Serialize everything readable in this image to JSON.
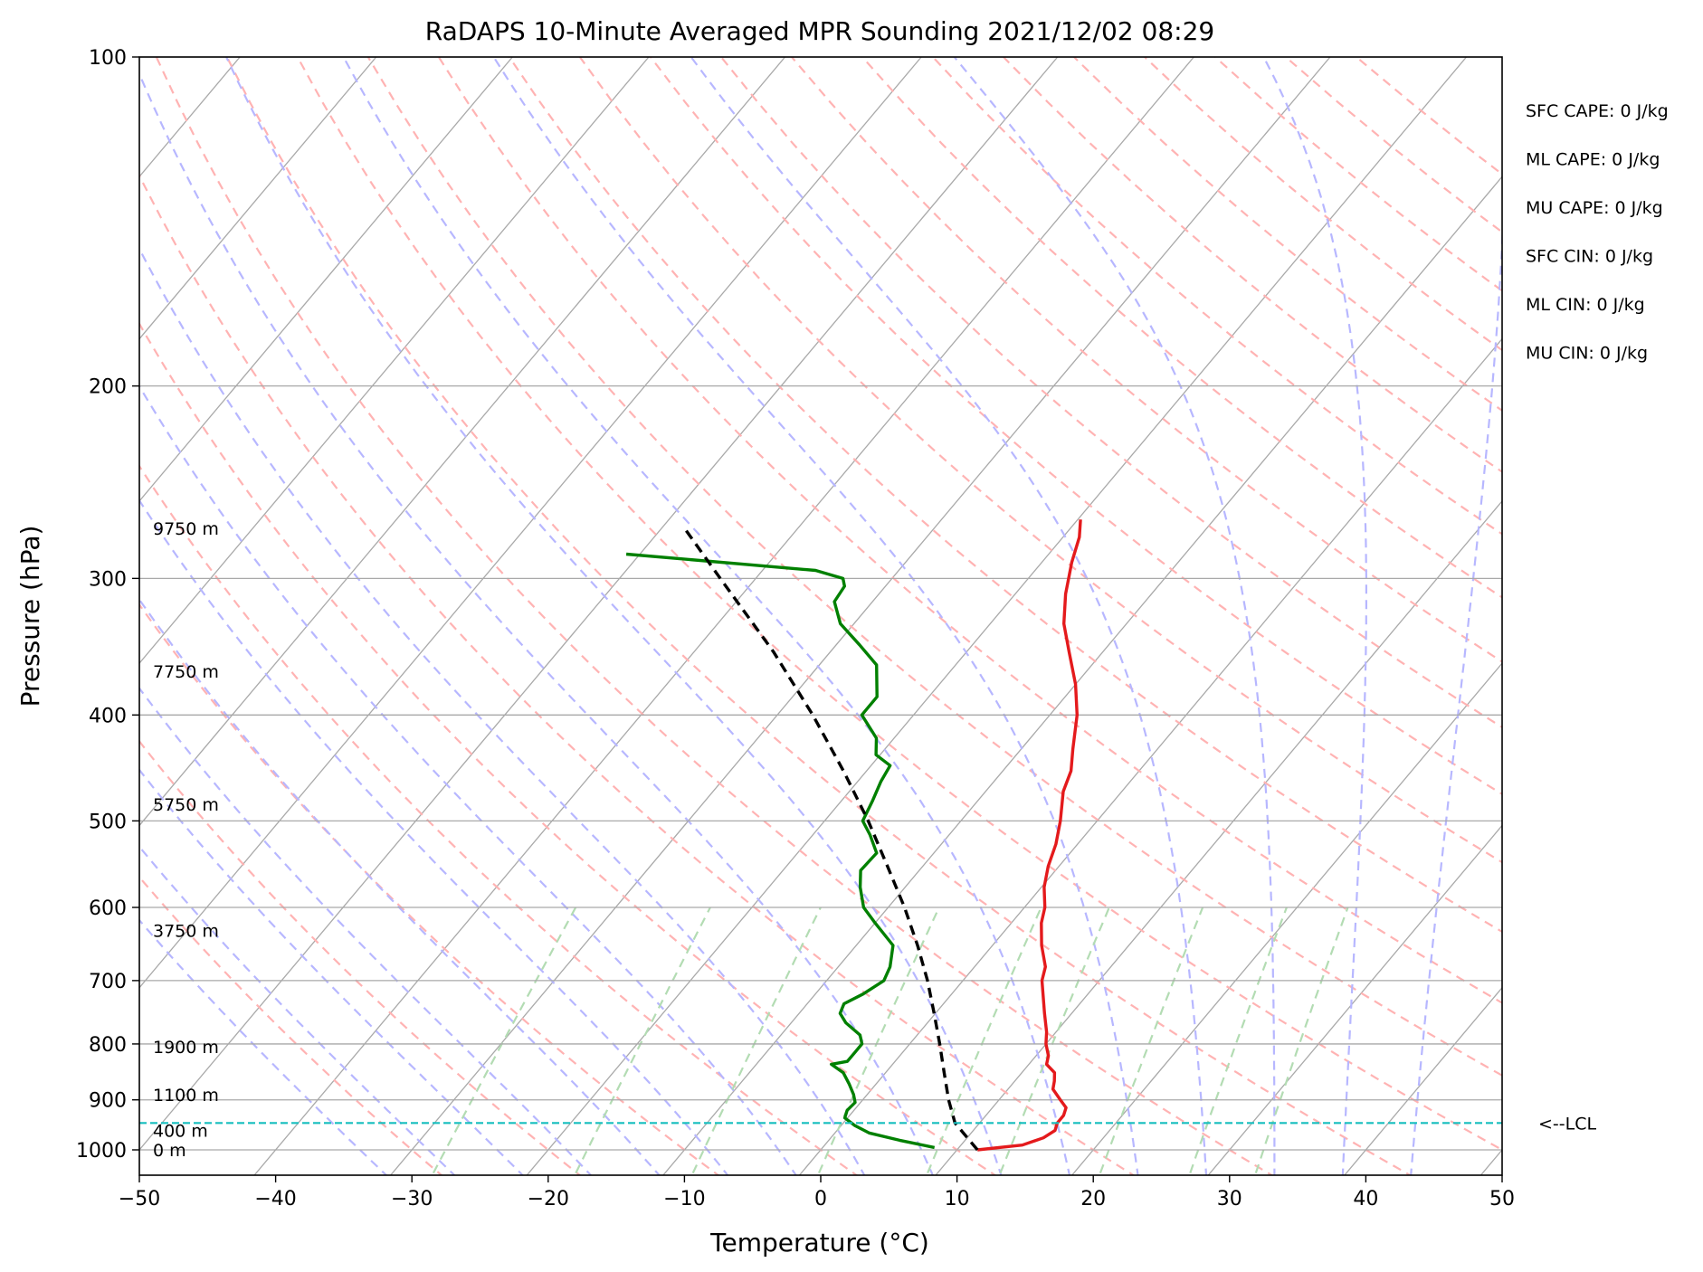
{
  "chart_data": {
    "type": "line",
    "subtype": "skew-T log-P sounding",
    "title": "RaDAPS 10-Minute Averaged MPR Sounding 2021/12/02 08:29",
    "xlabel": "Temperature (°C)",
    "ylabel": "Pressure (hPa)",
    "xlim": [
      -50,
      50
    ],
    "ylim": [
      1050,
      100
    ],
    "y_scale": "log",
    "x_ticks": [
      "−50",
      "−40",
      "−30",
      "−20",
      "−10",
      "0",
      "10",
      "20",
      "30",
      "40",
      "50"
    ],
    "y_ticks": [
      "100",
      "200",
      "300",
      "400",
      "500",
      "600",
      "700",
      "800",
      "900",
      "1000"
    ],
    "grid": true,
    "height_labels": [
      {
        "label": "9750 m",
        "pressure": 270
      },
      {
        "label": "7750 m",
        "pressure": 365
      },
      {
        "label": "5750 m",
        "pressure": 483
      },
      {
        "label": "3750 m",
        "pressure": 630
      },
      {
        "label": "1900 m",
        "pressure": 805
      },
      {
        "label": "1100 m",
        "pressure": 890
      },
      {
        "label": "400 m",
        "pressure": 960
      },
      {
        "label": "0 m",
        "pressure": 1000
      }
    ],
    "lcl": {
      "label": "<--LCL",
      "pressure": 945
    },
    "indices": [
      "SFC CAPE: 0 J/kg",
      "ML CAPE: 0 J/kg",
      "MU CAPE: 0 J/kg",
      "SFC CIN: 0 J/kg",
      "ML CIN: 0 J/kg",
      "MU CIN: 0 J/kg"
    ],
    "series": [
      {
        "role": "temperature",
        "color": "#e41a1c",
        "points": [
          [
            1000,
            11.5
          ],
          [
            990,
            14.5
          ],
          [
            975,
            15.6
          ],
          [
            960,
            16.0
          ],
          [
            945,
            15.7
          ],
          [
            930,
            15.7
          ],
          [
            915,
            15.4
          ],
          [
            900,
            14.5
          ],
          [
            880,
            13.3
          ],
          [
            865,
            12.9
          ],
          [
            850,
            12.4
          ],
          [
            835,
            11.3
          ],
          [
            820,
            10.9
          ],
          [
            800,
            10.0
          ],
          [
            780,
            9.3
          ],
          [
            750,
            8.0
          ],
          [
            700,
            5.8
          ],
          [
            680,
            5.2
          ],
          [
            650,
            3.6
          ],
          [
            620,
            2.2
          ],
          [
            600,
            1.5
          ],
          [
            575,
            0.2
          ],
          [
            550,
            -0.8
          ],
          [
            525,
            -1.6
          ],
          [
            500,
            -2.7
          ],
          [
            470,
            -4.3
          ],
          [
            450,
            -5.0
          ],
          [
            430,
            -6.2
          ],
          [
            400,
            -8.0
          ],
          [
            375,
            -10.0
          ],
          [
            350,
            -12.5
          ],
          [
            330,
            -14.6
          ],
          [
            310,
            -16.3
          ],
          [
            290,
            -17.8
          ],
          [
            275,
            -18.8
          ],
          [
            265,
            -19.8
          ]
        ]
      },
      {
        "role": "dewpoint",
        "color": "#008000",
        "points": [
          [
            995,
            8.2
          ],
          [
            980,
            5.2
          ],
          [
            965,
            2.5
          ],
          [
            950,
            1.0
          ],
          [
            935,
            -0.2
          ],
          [
            920,
            -0.5
          ],
          [
            905,
            -0.4
          ],
          [
            890,
            -1.0
          ],
          [
            870,
            -2.0
          ],
          [
            850,
            -3.1
          ],
          [
            835,
            -4.5
          ],
          [
            830,
            -3.5
          ],
          [
            815,
            -3.5
          ],
          [
            800,
            -3.5
          ],
          [
            785,
            -4.2
          ],
          [
            765,
            -6.0
          ],
          [
            750,
            -7.0
          ],
          [
            735,
            -7.3
          ],
          [
            720,
            -6.5
          ],
          [
            700,
            -5.8
          ],
          [
            680,
            -6.2
          ],
          [
            650,
            -7.3
          ],
          [
            620,
            -10.0
          ],
          [
            600,
            -11.8
          ],
          [
            575,
            -13.3
          ],
          [
            555,
            -14.3
          ],
          [
            535,
            -14.2
          ],
          [
            515,
            -15.8
          ],
          [
            500,
            -17.2
          ],
          [
            480,
            -17.7
          ],
          [
            460,
            -18.3
          ],
          [
            445,
            -18.6
          ],
          [
            435,
            -20.3
          ],
          [
            420,
            -21.3
          ],
          [
            400,
            -23.8
          ],
          [
            385,
            -23.8
          ],
          [
            360,
            -25.8
          ],
          [
            345,
            -28.3
          ],
          [
            330,
            -31.0
          ],
          [
            315,
            -32.8
          ],
          [
            305,
            -33.0
          ],
          [
            300,
            -33.6
          ],
          [
            295,
            -36.1
          ],
          [
            285,
            -51.0
          ]
        ]
      },
      {
        "role": "parcel",
        "color": "#000000",
        "points": [
          [
            1000,
            11.5
          ],
          [
            945,
            8.2
          ],
          [
            900,
            6.3
          ],
          [
            850,
            4.3
          ],
          [
            800,
            2.2
          ],
          [
            750,
            -0.1
          ],
          [
            700,
            -2.6
          ],
          [
            650,
            -5.5
          ],
          [
            600,
            -8.8
          ],
          [
            550,
            -12.6
          ],
          [
            500,
            -16.8
          ],
          [
            450,
            -21.7
          ],
          [
            400,
            -27.4
          ],
          [
            350,
            -34.2
          ],
          [
            300,
            -42.6
          ],
          [
            270,
            -48.3
          ]
        ]
      }
    ],
    "background_lines": [
      "isotherms",
      "dry adiabats",
      "moist adiabats",
      "mixing ratio lines"
    ],
    "line_colors": {
      "isotherm": "#a9a9a9",
      "dry_adiabat": "#ffb3b3",
      "moist_adiabat": "#b7b7ff",
      "mixing_ratio": "#b3dcb3",
      "lcl": "#17bfbf"
    }
  }
}
